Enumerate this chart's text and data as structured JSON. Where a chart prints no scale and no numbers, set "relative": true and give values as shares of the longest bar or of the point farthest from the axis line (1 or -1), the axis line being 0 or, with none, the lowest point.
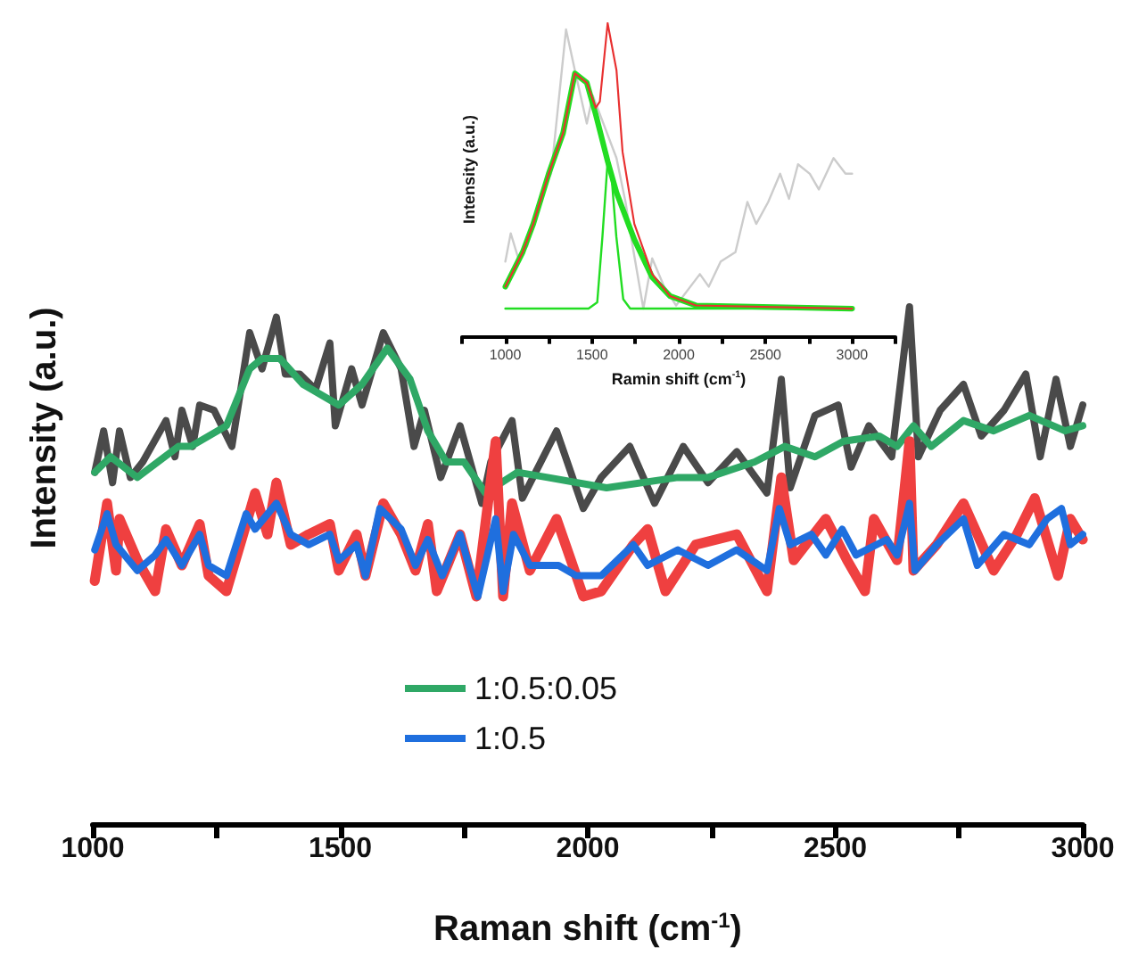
{
  "chart_data": [
    {
      "type": "line",
      "relative": true,
      "xlabel": "Raman shift (cm$^{-1}$)",
      "ylabel": "Intensity (a.u.)",
      "xlim": [
        1000,
        3000
      ],
      "xticks": [
        1000,
        {
          "value": 1250,
          "label": null
        },
        1500,
        {
          "value": 1750,
          "label": null
        },
        2000,
        {
          "value": 2250,
          "label": null
        },
        2500,
        {
          "value": 2750,
          "label": null
        },
        3000
      ],
      "legend": "bottom",
      "marker": "none",
      "line_style": "solid",
      "series": [
        {
          "color": "#4a4a4a",
          "x": [
            1004,
            1022,
            1040,
            1054,
            1076,
            1101,
            1148,
            1166,
            1180,
            1202,
            1216,
            1245,
            1281,
            1317,
            1342,
            1371,
            1389,
            1418,
            1450,
            1479,
            1490,
            1523,
            1544,
            1587,
            1623,
            1649,
            1670,
            1703,
            1742,
            1786,
            1804,
            1847,
            1868,
            1937,
            1991,
            2027,
            2085,
            2135,
            2193,
            2243,
            2301,
            2362,
            2391,
            2409,
            2459,
            2506,
            2532,
            2568,
            2614,
            2650,
            2668,
            2712,
            2759,
            2795,
            2841,
            2885,
            2914,
            2946,
            2975,
            3000
          ],
          "values": [
            0.68,
            0.76,
            0.66,
            0.76,
            0.67,
            0.7,
            0.78,
            0.71,
            0.8,
            0.73,
            0.81,
            0.8,
            0.73,
            0.95,
            0.88,
            0.98,
            0.87,
            0.87,
            0.84,
            0.93,
            0.77,
            0.88,
            0.81,
            0.95,
            0.88,
            0.73,
            0.8,
            0.67,
            0.77,
            0.62,
            0.7,
            0.78,
            0.63,
            0.76,
            0.61,
            0.67,
            0.73,
            0.62,
            0.73,
            0.66,
            0.72,
            0.64,
            0.86,
            0.65,
            0.79,
            0.81,
            0.69,
            0.77,
            0.71,
            1.0,
            0.71,
            0.8,
            0.85,
            0.75,
            0.8,
            0.87,
            0.71,
            0.86,
            0.73,
            0.81
          ]
        },
        {
          "name": "1:0.5:0.05",
          "color": "#2fa866",
          "x": [
            1004,
            1036,
            1090,
            1173,
            1198,
            1270,
            1317,
            1342,
            1378,
            1425,
            1497,
            1544,
            1595,
            1641,
            1677,
            1714,
            1750,
            1793,
            1858,
            1919,
            2038,
            2182,
            2243,
            2337,
            2398,
            2459,
            2517,
            2589,
            2625,
            2658,
            2694,
            2759,
            2820,
            2892,
            2964,
            3000
          ],
          "values": [
            0.68,
            0.71,
            0.67,
            0.73,
            0.73,
            0.77,
            0.88,
            0.9,
            0.9,
            0.85,
            0.81,
            0.85,
            0.92,
            0.86,
            0.76,
            0.7,
            0.7,
            0.64,
            0.68,
            0.67,
            0.65,
            0.67,
            0.67,
            0.7,
            0.73,
            0.71,
            0.74,
            0.75,
            0.73,
            0.77,
            0.73,
            0.78,
            0.76,
            0.79,
            0.76,
            0.77
          ]
        },
        {
          "color": "#ef4040",
          "x": [
            1004,
            1029,
            1047,
            1054,
            1090,
            1126,
            1148,
            1180,
            1216,
            1234,
            1270,
            1310,
            1328,
            1353,
            1371,
            1400,
            1436,
            1479,
            1497,
            1533,
            1551,
            1587,
            1623,
            1652,
            1677,
            1695,
            1742,
            1775,
            1814,
            1829,
            1847,
            1883,
            1937,
            1966,
            1991,
            2027,
            2092,
            2121,
            2157,
            2218,
            2301,
            2362,
            2391,
            2416,
            2481,
            2524,
            2560,
            2578,
            2625,
            2650,
            2658,
            2705,
            2759,
            2820,
            2867,
            2903,
            2950,
            2975,
            3000
          ],
          "values": [
            0.47,
            0.62,
            0.49,
            0.59,
            0.51,
            0.45,
            0.57,
            0.5,
            0.58,
            0.48,
            0.45,
            0.58,
            0.64,
            0.56,
            0.66,
            0.54,
            0.56,
            0.58,
            0.49,
            0.56,
            0.48,
            0.62,
            0.56,
            0.49,
            0.58,
            0.45,
            0.56,
            0.44,
            0.74,
            0.44,
            0.62,
            0.49,
            0.59,
            0.51,
            0.44,
            0.45,
            0.54,
            0.57,
            0.45,
            0.54,
            0.56,
            0.45,
            0.67,
            0.51,
            0.59,
            0.51,
            0.45,
            0.59,
            0.51,
            0.74,
            0.49,
            0.54,
            0.62,
            0.49,
            0.56,
            0.63,
            0.48,
            0.59,
            0.55
          ]
        },
        {
          "name": "1:0.5",
          "color": "#1f6fde",
          "x": [
            1004,
            1029,
            1047,
            1090,
            1126,
            1148,
            1180,
            1216,
            1234,
            1270,
            1310,
            1328,
            1371,
            1400,
            1436,
            1479,
            1497,
            1533,
            1551,
            1580,
            1623,
            1652,
            1677,
            1706,
            1742,
            1778,
            1814,
            1829,
            1850,
            1883,
            1941,
            1977,
            2027,
            2092,
            2121,
            2182,
            2243,
            2301,
            2362,
            2387,
            2409,
            2452,
            2481,
            2514,
            2542,
            2604,
            2625,
            2650,
            2661,
            2705,
            2759,
            2787,
            2841,
            2892,
            2928,
            2957,
            2975,
            3000
          ],
          "values": [
            0.53,
            0.6,
            0.54,
            0.49,
            0.52,
            0.55,
            0.5,
            0.56,
            0.5,
            0.48,
            0.6,
            0.57,
            0.62,
            0.56,
            0.54,
            0.56,
            0.51,
            0.54,
            0.48,
            0.61,
            0.57,
            0.5,
            0.55,
            0.48,
            0.56,
            0.44,
            0.59,
            0.45,
            0.56,
            0.5,
            0.5,
            0.48,
            0.48,
            0.54,
            0.5,
            0.53,
            0.5,
            0.53,
            0.49,
            0.61,
            0.54,
            0.56,
            0.52,
            0.57,
            0.52,
            0.55,
            0.52,
            0.62,
            0.49,
            0.54,
            0.59,
            0.5,
            0.56,
            0.54,
            0.59,
            0.61,
            0.54,
            0.56
          ]
        }
      ]
    },
    {
      "type": "line",
      "relative": true,
      "xlabel": "Ramin shift (cm$^{-1}$)",
      "ylabel": "Intensity (a.u.)",
      "xlim": [
        750,
        3250
      ],
      "xticks": [
        {
          "value": 750,
          "label": null
        },
        1000,
        {
          "value": 1250,
          "label": null
        },
        1500,
        {
          "value": 1750,
          "label": null
        },
        2000,
        {
          "value": 2250,
          "label": null
        },
        2500,
        {
          "value": 2750,
          "label": null
        },
        3000,
        {
          "value": 3250,
          "label": null
        }
      ],
      "marker": "none",
      "line_style": "solid",
      "series": [
        {
          "color": "#cccccc",
          "x": [
            1000,
            1031,
            1075,
            1127,
            1213,
            1264,
            1350,
            1401,
            1470,
            1504,
            1641,
            1693,
            1737,
            1796,
            1847,
            1916,
            1985,
            2122,
            2173,
            2242,
            2327,
            2396,
            2447,
            2516,
            2585,
            2636,
            2688,
            2756,
            2808,
            2893,
            2962,
            3000
          ],
          "values": [
            0.24,
            0.33,
            0.25,
            0.29,
            0.46,
            0.52,
            0.98,
            0.85,
            0.68,
            0.77,
            0.57,
            0.43,
            0.28,
            0.09,
            0.25,
            0.16,
            0.1,
            0.2,
            0.16,
            0.24,
            0.27,
            0.43,
            0.36,
            0.43,
            0.52,
            0.44,
            0.55,
            0.52,
            0.47,
            0.57,
            0.52,
            0.52
          ]
        },
        {
          "color": "#22dd22",
          "x": [
            1000,
            1100,
            1161,
            1250,
            1333,
            1401,
            1470,
            1521,
            1590,
            1641,
            1744,
            1847,
            1950,
            2100,
            3000
          ],
          "values": [
            0.16,
            0.27,
            0.36,
            0.52,
            0.65,
            0.84,
            0.81,
            0.71,
            0.56,
            0.46,
            0.31,
            0.19,
            0.13,
            0.1,
            0.09
          ]
        },
        {
          "color": "#22dd22",
          "x": [
            1000,
            1480,
            1530,
            1560,
            1590,
            1610,
            1640,
            1680,
            1720,
            3000
          ],
          "values": [
            0.09,
            0.09,
            0.11,
            0.32,
            0.56,
            0.53,
            0.32,
            0.12,
            0.09,
            0.09
          ]
        },
        {
          "color": "#e83030",
          "x": [
            1000,
            1100,
            1161,
            1250,
            1333,
            1401,
            1470,
            1521,
            1545,
            1590,
            1641,
            1676,
            1744,
            1847,
            1950,
            2100,
            3000
          ],
          "values": [
            0.16,
            0.27,
            0.36,
            0.52,
            0.65,
            0.84,
            0.81,
            0.73,
            0.75,
            1.0,
            0.85,
            0.59,
            0.36,
            0.2,
            0.13,
            0.1,
            0.09
          ]
        }
      ]
    }
  ]
}
